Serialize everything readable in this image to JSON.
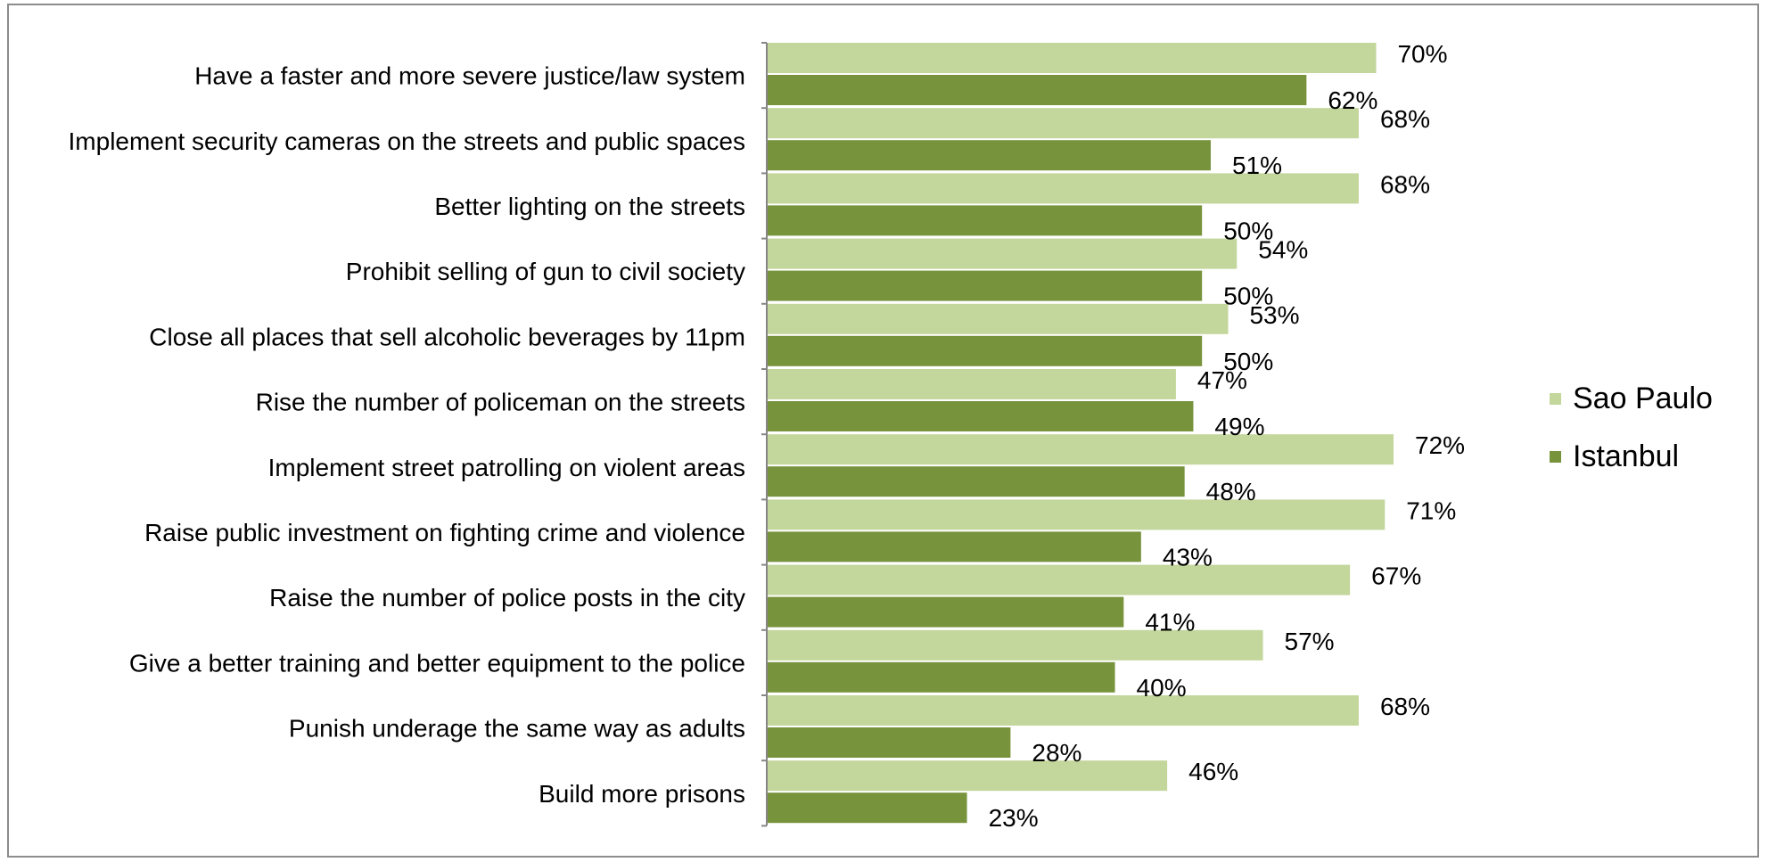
{
  "chart_data": {
    "type": "bar",
    "orientation": "horizontal",
    "categories": [
      "Have a faster and more severe justice/law system",
      "Implement security cameras on the streets and public spaces",
      "Better lighting on the streets",
      "Prohibit selling of gun to civil society",
      "Close all places that sell alcoholic beverages by 11pm",
      "Rise the number of policeman on the streets",
      "Implement street patrolling on violent areas",
      "Raise public investment on fighting crime and violence",
      "Raise the number of police posts in the city",
      "Give a better training and better equipment to the police",
      "Punish underage the same way as adults",
      "Build more prisons"
    ],
    "series": [
      {
        "name": "Sao Paulo",
        "color": "#c3d69b",
        "values": [
          70,
          68,
          68,
          54,
          53,
          47,
          72,
          71,
          67,
          57,
          68,
          46
        ],
        "labels": [
          "70%",
          "68%",
          "68%",
          "54%",
          "53%",
          "47%",
          "72%",
          "71%",
          "67%",
          "57%",
          "68%",
          "46%"
        ]
      },
      {
        "name": "Istanbul",
        "color": "#77933c",
        "values": [
          62,
          51,
          50,
          50,
          50,
          49,
          48,
          43,
          41,
          40,
          28,
          23
        ],
        "labels": [
          "62%",
          "51%",
          "50%",
          "50%",
          "50%",
          "49%",
          "48%",
          "43%",
          "41%",
          "40%",
          "28%",
          "23%"
        ]
      }
    ],
    "xlim": [
      0,
      80
    ],
    "grid": false,
    "legend_position": "right"
  }
}
